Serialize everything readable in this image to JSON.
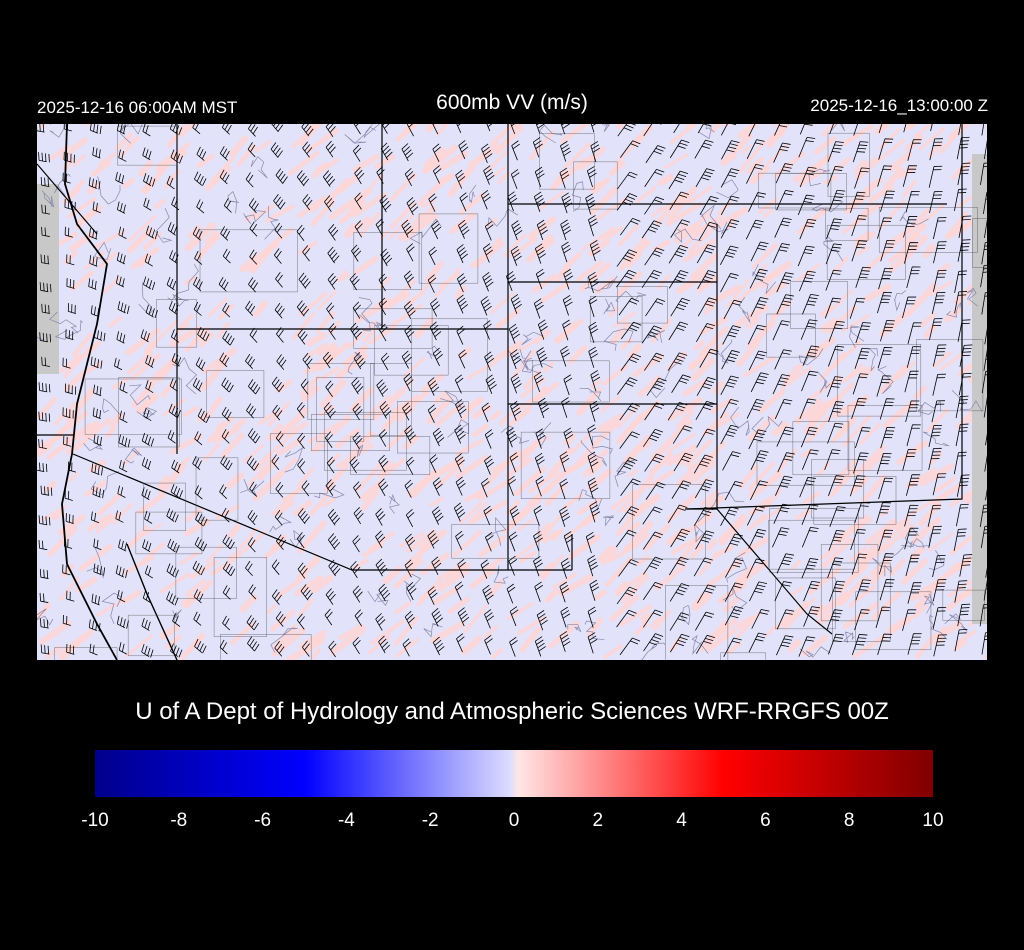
{
  "header": {
    "local_time": "2025-12-16 06:00AM MST",
    "title": "600mb VV (m/s)",
    "valid_time": "2025-12-16_13:00:00 Z"
  },
  "credit": "U of A Dept of Hydrology and Atmospheric Sciences WRF-RRGFS 00Z",
  "colorbar": {
    "min": -10,
    "max": 10,
    "tick_labels": [
      "-10",
      "-8",
      "-6",
      "-4",
      "-2",
      "0",
      "2",
      "4",
      "6",
      "8",
      "10"
    ],
    "colors": [
      "#00008b",
      "#0000ff",
      "#ffffff",
      "#ff0000",
      "#800000"
    ]
  },
  "map": {
    "field": "600mb vertical velocity",
    "background_color": "#e2e2fa",
    "upward_color": "#ffd6d6",
    "outside_domain_color": "#c8c8c8",
    "overlays": [
      "wind-barbs",
      "state-borders",
      "county-borders",
      "coastline",
      "terrain-contours"
    ]
  }
}
